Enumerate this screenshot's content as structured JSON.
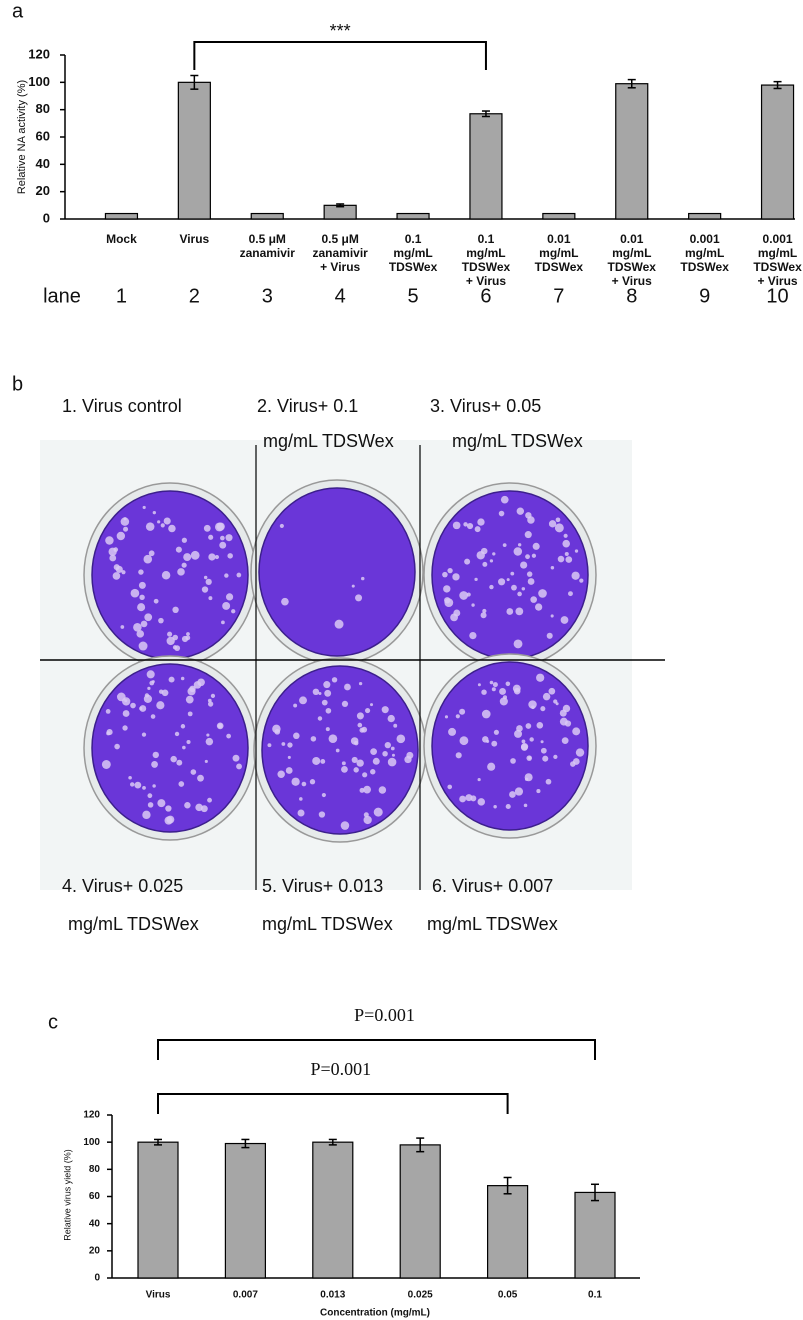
{
  "chart_data": [
    {
      "type": "bar",
      "panel": "a",
      "ylabel": "Relative NA activity (%)",
      "categories": [
        [
          "Mock"
        ],
        [
          "Virus"
        ],
        [
          "0.5 μM",
          "zanamivir"
        ],
        [
          "0.5 μM",
          "zanamivir",
          "+ Virus"
        ],
        [
          "0.1",
          "mg/mL",
          "TDSWex"
        ],
        [
          "0.1",
          "mg/mL",
          "TDSWex",
          "+ Virus"
        ],
        [
          "0.01",
          "mg/mL",
          "TDSWex"
        ],
        [
          "0.01",
          "mg/mL",
          "TDSWex",
          "+ Virus"
        ],
        [
          "0.001",
          "mg/mL",
          "TDSWex"
        ],
        [
          "0.001",
          "mg/mL",
          "TDSWex",
          "+ Virus"
        ]
      ],
      "values": [
        4,
        100,
        4,
        10,
        4,
        77,
        4,
        99,
        4,
        98
      ],
      "errors": [
        null,
        5,
        null,
        1,
        null,
        2,
        null,
        3,
        null,
        2.5
      ],
      "color": "#a6a6a6",
      "ylim": [
        0,
        120
      ],
      "yticks": [
        0,
        20,
        40,
        60,
        80,
        100,
        120
      ],
      "lane_label": "lane",
      "lanes": [
        1,
        2,
        3,
        4,
        5,
        6,
        7,
        8,
        9,
        10
      ],
      "brackets": [
        {
          "label": "***",
          "between": [
            2,
            6
          ]
        }
      ]
    },
    {
      "type": "bar",
      "panel": "c",
      "ylabel": "Relative virus yield (%)",
      "xlabel": "Concentration (mg/mL)",
      "categories": [
        "Virus",
        "0.007",
        "0.013",
        "0.025",
        "0.05",
        "0.1"
      ],
      "values": [
        100,
        99,
        100,
        98,
        68,
        63
      ],
      "errors": [
        2,
        3,
        2,
        5,
        6,
        6
      ],
      "color": "#a6a6a6",
      "ylim": [
        0,
        120
      ],
      "yticks": [
        0,
        20,
        40,
        60,
        80,
        100,
        120
      ],
      "brackets": [
        {
          "label": "P=0.001",
          "between": [
            "Virus",
            "0.1"
          ]
        },
        {
          "label": "P=0.001",
          "between": [
            "Virus",
            "0.05"
          ]
        }
      ]
    }
  ],
  "panel_b": {
    "panel": "b",
    "wells": [
      {
        "title": [
          "1. Virus control"
        ]
      },
      {
        "title": [
          "2. Virus+ 0.1",
          "mg/mL TDSWex"
        ]
      },
      {
        "title": [
          "3. Virus+ 0.05",
          "mg/mL TDSWex"
        ]
      },
      {
        "title": [
          "4. Virus+ 0.025",
          "mg/mL TDSWex"
        ]
      },
      {
        "title": [
          "5. Virus+ 0.013",
          "mg/mL TDSWex"
        ]
      },
      {
        "title": [
          "6. Virus+ 0.007",
          "mg/mL TDSWex"
        ]
      }
    ]
  }
}
